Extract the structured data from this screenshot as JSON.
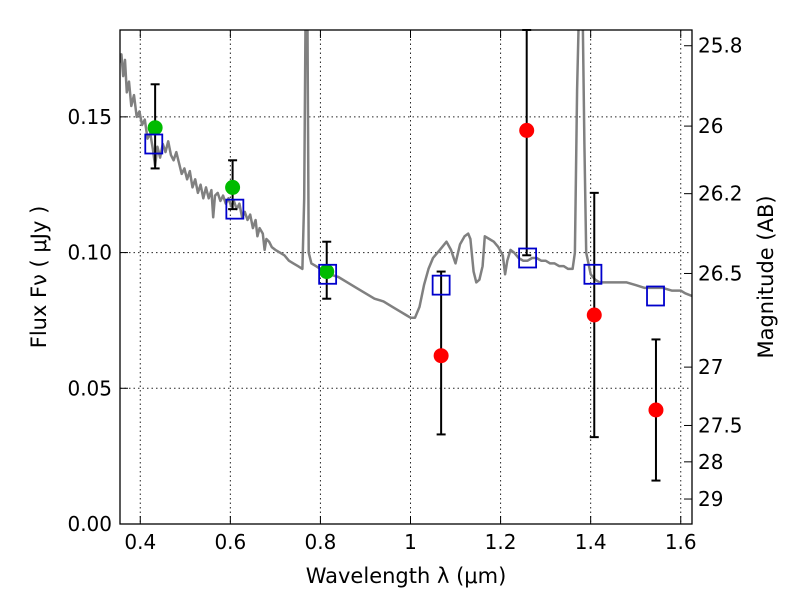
{
  "chart_data": {
    "type": "scatter",
    "xlabel": "Wavelength  λ (μm)",
    "ylabel": "Flux  Fν  ( μJy )",
    "ylabel_right": "Magnitude (AB)",
    "xlim": [
      0.355,
      1.625
    ],
    "ylim": [
      0.0,
      0.182
    ],
    "grid": true,
    "x_ticks": [
      {
        "value": 0.4,
        "label": "0.4"
      },
      {
        "value": 0.6,
        "label": "0.6"
      },
      {
        "value": 0.8,
        "label": "0.8"
      },
      {
        "value": 1.0,
        "label": "1"
      },
      {
        "value": 1.2,
        "label": "1.2"
      },
      {
        "value": 1.4,
        "label": "1.4"
      },
      {
        "value": 1.6,
        "label": "1.6"
      }
    ],
    "y_ticks": [
      {
        "value": 0.0,
        "label": "0.00"
      },
      {
        "value": 0.05,
        "label": "0.05"
      },
      {
        "value": 0.1,
        "label": "0.10"
      },
      {
        "value": 0.15,
        "label": "0.15"
      }
    ],
    "mag_ticks": [
      {
        "value": 0.1762,
        "label": "25.8"
      },
      {
        "value": 0.1466,
        "label": "26"
      },
      {
        "value": 0.1217,
        "label": "26.2"
      },
      {
        "value": 0.0923,
        "label": "26.5"
      },
      {
        "value": 0.0578,
        "label": "27"
      },
      {
        "value": 0.0363,
        "label": "27.5"
      },
      {
        "value": 0.0229,
        "label": "28"
      },
      {
        "value": 0.0092,
        "label": "29"
      }
    ],
    "series": [
      {
        "name": "model-spectrum",
        "kind": "line",
        "color": "#808080",
        "points": [
          [
            0.355,
            0.17
          ],
          [
            0.358,
            0.173
          ],
          [
            0.362,
            0.165
          ],
          [
            0.366,
            0.171
          ],
          [
            0.37,
            0.159
          ],
          [
            0.375,
            0.163
          ],
          [
            0.38,
            0.154
          ],
          [
            0.386,
            0.158
          ],
          [
            0.392,
            0.15
          ],
          [
            0.398,
            0.152
          ],
          [
            0.404,
            0.147
          ],
          [
            0.41,
            0.149
          ],
          [
            0.416,
            0.142
          ],
          [
            0.422,
            0.144
          ],
          [
            0.428,
            0.138
          ],
          [
            0.433,
            0.132
          ],
          [
            0.438,
            0.139
          ],
          [
            0.444,
            0.135
          ],
          [
            0.45,
            0.14
          ],
          [
            0.456,
            0.137
          ],
          [
            0.462,
            0.141
          ],
          [
            0.468,
            0.136
          ],
          [
            0.474,
            0.134
          ],
          [
            0.48,
            0.137
          ],
          [
            0.486,
            0.133
          ],
          [
            0.492,
            0.129
          ],
          [
            0.498,
            0.131
          ],
          [
            0.504,
            0.127
          ],
          [
            0.51,
            0.13
          ],
          [
            0.516,
            0.124
          ],
          [
            0.522,
            0.127
          ],
          [
            0.528,
            0.122
          ],
          [
            0.534,
            0.125
          ],
          [
            0.54,
            0.12
          ],
          [
            0.546,
            0.124
          ],
          [
            0.552,
            0.12
          ],
          [
            0.558,
            0.123
          ],
          [
            0.562,
            0.113
          ],
          [
            0.566,
            0.121
          ],
          [
            0.572,
            0.122
          ],
          [
            0.578,
            0.119
          ],
          [
            0.584,
            0.121
          ],
          [
            0.59,
            0.118
          ],
          [
            0.596,
            0.12
          ],
          [
            0.602,
            0.117
          ],
          [
            0.608,
            0.119
          ],
          [
            0.614,
            0.116
          ],
          [
            0.62,
            0.118
          ],
          [
            0.626,
            0.113
          ],
          [
            0.632,
            0.115
          ],
          [
            0.638,
            0.112
          ],
          [
            0.644,
            0.114
          ],
          [
            0.65,
            0.109
          ],
          [
            0.656,
            0.112
          ],
          [
            0.66,
            0.106
          ],
          [
            0.665,
            0.109
          ],
          [
            0.672,
            0.107
          ],
          [
            0.676,
            0.101
          ],
          [
            0.68,
            0.105
          ],
          [
            0.686,
            0.104
          ],
          [
            0.692,
            0.102
          ],
          [
            0.7,
            0.101
          ],
          [
            0.71,
            0.1
          ],
          [
            0.72,
            0.099
          ],
          [
            0.73,
            0.097
          ],
          [
            0.74,
            0.096
          ],
          [
            0.75,
            0.095
          ],
          [
            0.76,
            0.094
          ],
          [
            0.764,
            0.12
          ],
          [
            0.767,
            0.19
          ],
          [
            0.771,
            0.19
          ],
          [
            0.774,
            0.1
          ],
          [
            0.78,
            0.096
          ],
          [
            0.79,
            0.095
          ],
          [
            0.8,
            0.094
          ],
          [
            0.81,
            0.093
          ],
          [
            0.82,
            0.092
          ],
          [
            0.84,
            0.091
          ],
          [
            0.86,
            0.089
          ],
          [
            0.88,
            0.087
          ],
          [
            0.9,
            0.085
          ],
          [
            0.92,
            0.083
          ],
          [
            0.94,
            0.082
          ],
          [
            0.96,
            0.08
          ],
          [
            0.98,
            0.078
          ],
          [
            0.99,
            0.077
          ],
          [
            1.0,
            0.076
          ],
          [
            1.01,
            0.076
          ],
          [
            1.02,
            0.08
          ],
          [
            1.03,
            0.088
          ],
          [
            1.04,
            0.094
          ],
          [
            1.05,
            0.098
          ],
          [
            1.065,
            0.101
          ],
          [
            1.08,
            0.104
          ],
          [
            1.09,
            0.101
          ],
          [
            1.1,
            0.096
          ],
          [
            1.11,
            0.103
          ],
          [
            1.12,
            0.106
          ],
          [
            1.128,
            0.107
          ],
          [
            1.133,
            0.105
          ],
          [
            1.14,
            0.093
          ],
          [
            1.146,
            0.089
          ],
          [
            1.153,
            0.09
          ],
          [
            1.16,
            0.095
          ],
          [
            1.165,
            0.106
          ],
          [
            1.175,
            0.105
          ],
          [
            1.185,
            0.104
          ],
          [
            1.195,
            0.102
          ],
          [
            1.205,
            0.099
          ],
          [
            1.21,
            0.092
          ],
          [
            1.215,
            0.097
          ],
          [
            1.222,
            0.101
          ],
          [
            1.23,
            0.1
          ],
          [
            1.24,
            0.098
          ],
          [
            1.25,
            0.097
          ],
          [
            1.26,
            0.097
          ],
          [
            1.27,
            0.098
          ],
          [
            1.28,
            0.098
          ],
          [
            1.29,
            0.097
          ],
          [
            1.3,
            0.097
          ],
          [
            1.31,
            0.096
          ],
          [
            1.32,
            0.096
          ],
          [
            1.33,
            0.095
          ],
          [
            1.34,
            0.095
          ],
          [
            1.35,
            0.094
          ],
          [
            1.36,
            0.094
          ],
          [
            1.365,
            0.1
          ],
          [
            1.37,
            0.16
          ],
          [
            1.374,
            0.19
          ],
          [
            1.382,
            0.19
          ],
          [
            1.386,
            0.14
          ],
          [
            1.39,
            0.1
          ],
          [
            1.4,
            0.092
          ],
          [
            1.41,
            0.09
          ],
          [
            1.42,
            0.089
          ],
          [
            1.44,
            0.089
          ],
          [
            1.46,
            0.089
          ],
          [
            1.48,
            0.089
          ],
          [
            1.5,
            0.088
          ],
          [
            1.52,
            0.087
          ],
          [
            1.54,
            0.087
          ],
          [
            1.56,
            0.087
          ],
          [
            1.58,
            0.086
          ],
          [
            1.6,
            0.086
          ],
          [
            1.61,
            0.085
          ],
          [
            1.625,
            0.084
          ]
        ]
      },
      {
        "name": "photometry-detections",
        "kind": "point",
        "color": "#00bb00",
        "points": [
          {
            "x": 0.433,
            "y": 0.146,
            "err_low": 0.131,
            "err_high": 0.162
          },
          {
            "x": 0.605,
            "y": 0.124,
            "err_low": 0.116,
            "err_high": 0.134
          },
          {
            "x": 0.814,
            "y": 0.093,
            "err_low": 0.083,
            "err_high": 0.104
          }
        ]
      },
      {
        "name": "photometry-low-significance",
        "kind": "point",
        "color": "#ff0000",
        "points": [
          {
            "x": 1.068,
            "y": 0.062,
            "err_low": 0.033,
            "err_high": 0.093
          },
          {
            "x": 1.258,
            "y": 0.145,
            "err_low": 0.099,
            "err_high": 0.182
          },
          {
            "x": 1.408,
            "y": 0.077,
            "err_low": 0.032,
            "err_high": 0.122
          },
          {
            "x": 1.545,
            "y": 0.042,
            "err_low": 0.016,
            "err_high": 0.068
          }
        ]
      },
      {
        "name": "model-band-flux",
        "kind": "open-square",
        "color": "#0000cc",
        "points": [
          {
            "x": 0.43,
            "y": 0.14
          },
          {
            "x": 0.61,
            "y": 0.116
          },
          {
            "x": 0.816,
            "y": 0.092
          },
          {
            "x": 1.068,
            "y": 0.088
          },
          {
            "x": 1.26,
            "y": 0.098
          },
          {
            "x": 1.405,
            "y": 0.092
          },
          {
            "x": 1.544,
            "y": 0.084
          }
        ]
      }
    ]
  }
}
